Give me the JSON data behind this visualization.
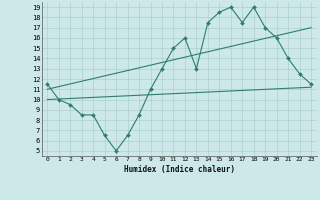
{
  "line1_x": [
    0,
    1,
    2,
    3,
    4,
    5,
    6,
    7,
    8,
    9,
    10,
    11,
    12,
    13,
    14,
    15,
    16,
    17,
    18,
    19,
    20,
    21,
    22,
    23
  ],
  "line1_y": [
    11.5,
    10.0,
    9.5,
    8.5,
    8.5,
    6.5,
    5.0,
    6.5,
    8.5,
    11.0,
    13.0,
    15.0,
    16.0,
    13.0,
    17.5,
    18.5,
    19.0,
    17.5,
    19.0,
    17.0,
    16.0,
    14.0,
    12.5,
    11.5
  ],
  "line2_x": [
    0,
    23
  ],
  "line2_y": [
    11.0,
    17.0
  ],
  "line3_x": [
    0,
    23
  ],
  "line3_y": [
    10.0,
    11.2
  ],
  "color": "#2e7d6e",
  "bg_color": "#cce8e8",
  "xlabel": "Humidex (Indice chaleur)",
  "xlim": [
    -0.5,
    23.5
  ],
  "ylim": [
    4.5,
    19.5
  ],
  "yticks": [
    5,
    6,
    7,
    8,
    9,
    10,
    11,
    12,
    13,
    14,
    15,
    16,
    17,
    18,
    19
  ],
  "xticks": [
    0,
    1,
    2,
    3,
    4,
    5,
    6,
    7,
    8,
    9,
    10,
    11,
    12,
    13,
    14,
    15,
    16,
    17,
    18,
    19,
    20,
    21,
    22,
    23
  ]
}
